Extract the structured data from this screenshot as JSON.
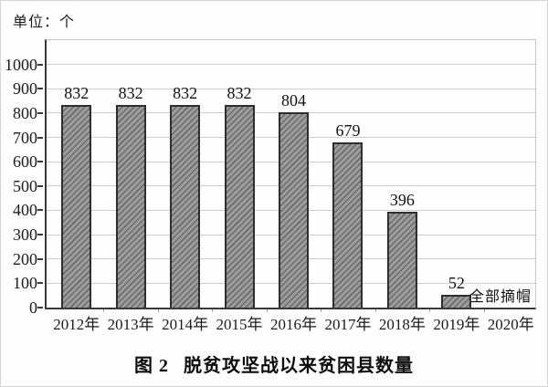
{
  "unit_label": "单位：个",
  "caption": {
    "prefix": "图 2",
    "title": "脱贫攻坚战以来贫困县数量"
  },
  "annotation": {
    "text": "全部摘帽",
    "category": "2020年"
  },
  "colors": {
    "bar_fill": "#9c9c9c",
    "bar_stripe": "#6a6a6a",
    "bar_border": "#2e2e2e",
    "gridline": "#cbcbcb",
    "axis": "#3a3a3a",
    "text": "#1b1b1b",
    "background": "#fefefe"
  },
  "chart_data": {
    "type": "bar",
    "title": "图 2 脱贫攻坚战以来贫困县数量",
    "unit": "个",
    "categories": [
      "2012年",
      "2013年",
      "2014年",
      "2015年",
      "2016年",
      "2017年",
      "2018年",
      "2019年",
      "2020年"
    ],
    "values": [
      832,
      832,
      832,
      832,
      804,
      679,
      396,
      52,
      0
    ],
    "bar_labels": [
      "832",
      "832",
      "832",
      "832",
      "804",
      "679",
      "396",
      "52",
      ""
    ],
    "annotations": [
      {
        "text": "全部摘帽",
        "category": "2020年"
      }
    ],
    "xlabel": "",
    "ylabel": "单位：个",
    "ylim": [
      0,
      1100
    ],
    "yticks": [
      0,
      100,
      200,
      300,
      400,
      500,
      600,
      700,
      800,
      900,
      1000
    ],
    "grid": true,
    "legend": false,
    "hatch": "diagonal"
  }
}
